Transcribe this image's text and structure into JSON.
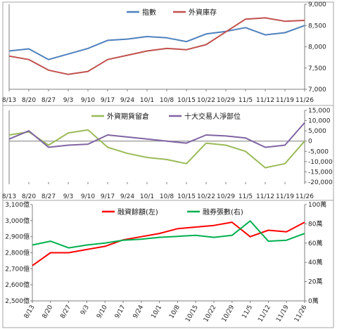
{
  "chart_data": [
    {
      "type": "line",
      "x": [
        "8/13",
        "8/20",
        "8/27",
        "9/3",
        "9/10",
        "9/17",
        "9/24",
        "10/1",
        "10/8",
        "10/15",
        "10/22",
        "10/29",
        "11/5",
        "11/12",
        "11/19",
        "11/26"
      ],
      "ylim": [
        7000,
        9000
      ],
      "yticks": [
        "7,000",
        "7,500",
        "8,000",
        "8,500",
        "9,000"
      ],
      "legend_position": "top-center",
      "grid": false,
      "series": [
        {
          "name": "指數",
          "color": "#4f81bd",
          "values": [
            7900,
            7950,
            7700,
            7830,
            7960,
            8150,
            8180,
            8240,
            8210,
            8120,
            8300,
            8360,
            8450,
            8280,
            8330,
            8500
          ]
        },
        {
          "name": "外資庫存",
          "color": "#c0504d",
          "values": [
            7780,
            7700,
            7450,
            7350,
            7420,
            7700,
            7800,
            7900,
            7960,
            7930,
            8050,
            8350,
            8650,
            8680,
            8600,
            8620
          ]
        }
      ]
    },
    {
      "type": "line",
      "x": [
        "8/13",
        "8/20",
        "8/27",
        "9/3",
        "9/10",
        "9/17",
        "9/24",
        "10/1",
        "10/8",
        "10/15",
        "10/22",
        "10/29",
        "11/5",
        "11/12",
        "11/19",
        "11/26"
      ],
      "ylim": [
        -20000,
        15000
      ],
      "yticks": [
        "-20,000",
        "-15,000",
        "-10,000",
        "-5,000",
        "0",
        "5,000",
        "10,000",
        "15,000"
      ],
      "legend_position": "top-center",
      "grid": false,
      "series": [
        {
          "name": "外資期貨留倉",
          "color": "#9bbb59",
          "values": [
            3000,
            4500,
            -2000,
            4000,
            5500,
            -3000,
            -6000,
            -8000,
            -9000,
            -11000,
            -1000,
            -2000,
            -5000,
            -13000,
            -11000,
            0
          ]
        },
        {
          "name": "十大交易人淨部位",
          "color": "#8064a2",
          "values": [
            1000,
            5000,
            -3000,
            -2000,
            -1500,
            3000,
            2000,
            1000,
            0,
            -1000,
            3000,
            2500,
            1500,
            -3000,
            -2000,
            9000
          ]
        }
      ]
    },
    {
      "type": "line",
      "x": [
        "8/13",
        "8/20",
        "8/27",
        "9/3",
        "9/10",
        "9/17",
        "9/24",
        "10/1",
        "10/8",
        "10/15",
        "10/22",
        "10/29",
        "11/5",
        "11/12",
        "11/19",
        "11/26"
      ],
      "ylim": [
        2500,
        3100
      ],
      "yticks": [
        "2,500億",
        "2,600億",
        "2,700億",
        "2,800億",
        "2,900億",
        "3,000億",
        "3,100億"
      ],
      "ylim_right": [
        0,
        100
      ],
      "yticks_right": [
        "0萬",
        "20萬",
        "40萬",
        "60萬",
        "80萬",
        "100萬"
      ],
      "legend_position": "top-center",
      "grid": false,
      "series": [
        {
          "name": "融資餘額(左)",
          "color": "#ff0000",
          "axis": "left",
          "values": [
            2720,
            2800,
            2800,
            2820,
            2840,
            2880,
            2900,
            2920,
            2950,
            2960,
            2970,
            2990,
            2900,
            2940,
            2930,
            2990
          ]
        },
        {
          "name": "融券張數(右)",
          "color": "#00b050",
          "axis": "right",
          "values": [
            58,
            62,
            55,
            58,
            60,
            63,
            64,
            66,
            67,
            68,
            66,
            68,
            83,
            62,
            63,
            70
          ]
        }
      ]
    }
  ]
}
